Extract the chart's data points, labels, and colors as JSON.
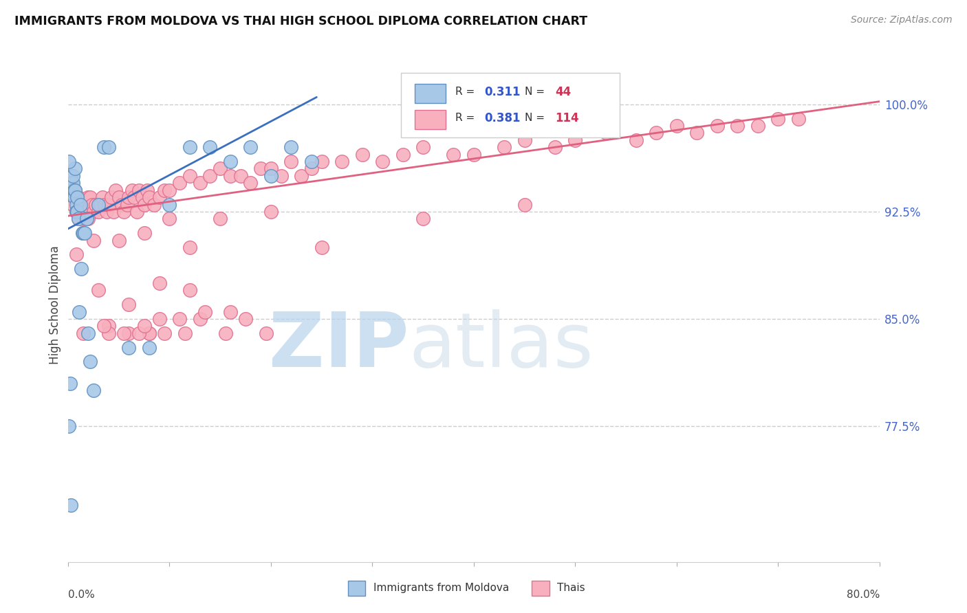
{
  "title": "IMMIGRANTS FROM MOLDOVA VS THAI HIGH SCHOOL DIPLOMA CORRELATION CHART",
  "source": "Source: ZipAtlas.com",
  "ylabel": "High School Diploma",
  "ytick_labels": [
    "77.5%",
    "85.0%",
    "92.5%",
    "100.0%"
  ],
  "ytick_values": [
    0.775,
    0.85,
    0.925,
    1.0
  ],
  "xlim": [
    0.0,
    0.8
  ],
  "ylim": [
    0.68,
    1.04
  ],
  "xtick_positions": [
    0.0,
    0.1,
    0.2,
    0.3,
    0.4,
    0.5,
    0.6,
    0.7,
    0.8
  ],
  "moldova_color": "#a8c8e8",
  "moldova_edge": "#6090c0",
  "thai_color": "#f8b0be",
  "thai_edge": "#e07090",
  "moldova_R": 0.311,
  "moldova_N": 44,
  "thai_R": 0.381,
  "thai_N": 114,
  "background_color": "#ffffff",
  "grid_color": "#cccccc",
  "legend_R_color": "#3355cc",
  "legend_N_color": "#cc3355",
  "thai_line_color": "#e06080",
  "moldova_line_color": "#3a6fc0",
  "watermark_color": "#d0e4f4",
  "moldova_points_x": [
    0.001,
    0.002,
    0.003,
    0.003,
    0.004,
    0.004,
    0.005,
    0.005,
    0.006,
    0.006,
    0.007,
    0.007,
    0.008,
    0.008,
    0.009,
    0.009,
    0.01,
    0.011,
    0.012,
    0.013,
    0.014,
    0.015,
    0.016,
    0.018,
    0.02,
    0.022,
    0.025,
    0.03,
    0.035,
    0.04,
    0.06,
    0.08,
    0.1,
    0.12,
    0.14,
    0.16,
    0.18,
    0.2,
    0.22,
    0.24,
    0.001,
    0.002,
    0.003,
    0.001
  ],
  "moldova_points_y": [
    0.937,
    0.94,
    0.945,
    0.95,
    0.945,
    0.94,
    0.945,
    0.95,
    0.94,
    0.935,
    0.94,
    0.955,
    0.93,
    0.925,
    0.935,
    0.925,
    0.92,
    0.855,
    0.93,
    0.885,
    0.91,
    0.91,
    0.91,
    0.92,
    0.84,
    0.82,
    0.8,
    0.93,
    0.97,
    0.97,
    0.83,
    0.83,
    0.93,
    0.97,
    0.97,
    0.96,
    0.97,
    0.95,
    0.97,
    0.96,
    0.775,
    0.805,
    0.72,
    0.96
  ],
  "thai_points_x": [
    0.003,
    0.005,
    0.007,
    0.008,
    0.01,
    0.012,
    0.014,
    0.015,
    0.017,
    0.018,
    0.02,
    0.022,
    0.024,
    0.025,
    0.027,
    0.03,
    0.032,
    0.034,
    0.036,
    0.038,
    0.04,
    0.043,
    0.045,
    0.047,
    0.05,
    0.053,
    0.055,
    0.058,
    0.06,
    0.063,
    0.065,
    0.068,
    0.07,
    0.073,
    0.075,
    0.078,
    0.08,
    0.085,
    0.09,
    0.095,
    0.1,
    0.11,
    0.12,
    0.13,
    0.14,
    0.15,
    0.16,
    0.17,
    0.18,
    0.19,
    0.2,
    0.21,
    0.22,
    0.23,
    0.24,
    0.25,
    0.27,
    0.29,
    0.31,
    0.33,
    0.35,
    0.38,
    0.4,
    0.43,
    0.45,
    0.48,
    0.5,
    0.53,
    0.56,
    0.58,
    0.6,
    0.62,
    0.64,
    0.66,
    0.68,
    0.7,
    0.72,
    0.01,
    0.025,
    0.05,
    0.075,
    0.1,
    0.15,
    0.2,
    0.008,
    0.03,
    0.06,
    0.09,
    0.12,
    0.02,
    0.04,
    0.08,
    0.35,
    0.45,
    0.12,
    0.25,
    0.08,
    0.16,
    0.04,
    0.06,
    0.07,
    0.09,
    0.11,
    0.13,
    0.015,
    0.035,
    0.055,
    0.075,
    0.095,
    0.115,
    0.135,
    0.155,
    0.175,
    0.195
  ],
  "thai_points_y": [
    0.94,
    0.93,
    0.94,
    0.925,
    0.935,
    0.93,
    0.925,
    0.92,
    0.93,
    0.925,
    0.935,
    0.935,
    0.93,
    0.925,
    0.93,
    0.925,
    0.93,
    0.935,
    0.93,
    0.925,
    0.93,
    0.935,
    0.925,
    0.94,
    0.935,
    0.93,
    0.925,
    0.93,
    0.935,
    0.94,
    0.935,
    0.925,
    0.94,
    0.935,
    0.93,
    0.94,
    0.935,
    0.93,
    0.935,
    0.94,
    0.94,
    0.945,
    0.95,
    0.945,
    0.95,
    0.955,
    0.95,
    0.95,
    0.945,
    0.955,
    0.955,
    0.95,
    0.96,
    0.95,
    0.955,
    0.96,
    0.96,
    0.965,
    0.96,
    0.965,
    0.97,
    0.965,
    0.965,
    0.97,
    0.975,
    0.97,
    0.975,
    0.98,
    0.975,
    0.98,
    0.985,
    0.98,
    0.985,
    0.985,
    0.985,
    0.99,
    0.99,
    0.92,
    0.905,
    0.905,
    0.91,
    0.92,
    0.92,
    0.925,
    0.895,
    0.87,
    0.86,
    0.875,
    0.9,
    0.92,
    0.845,
    0.84,
    0.92,
    0.93,
    0.87,
    0.9,
    0.84,
    0.855,
    0.84,
    0.84,
    0.84,
    0.85,
    0.85,
    0.85,
    0.84,
    0.845,
    0.84,
    0.845,
    0.84,
    0.84,
    0.855,
    0.84,
    0.85,
    0.84
  ],
  "thai_line_x": [
    0.0,
    0.8
  ],
  "thai_line_y": [
    0.922,
    1.002
  ],
  "moldova_line_x": [
    0.0,
    0.245
  ],
  "moldova_line_y": [
    0.913,
    1.005
  ]
}
